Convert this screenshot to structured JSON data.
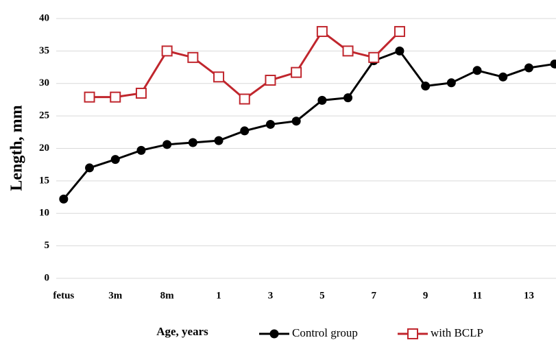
{
  "chart_data": {
    "type": "line",
    "ylabel": "Length, mm",
    "xlabel": "Age, years",
    "categories": [
      "fetus",
      null,
      "3m",
      null,
      "8m",
      null,
      "1",
      null,
      "3",
      null,
      "5",
      null,
      "7",
      null,
      "9",
      null,
      "11",
      null,
      "13",
      null
    ],
    "series": [
      {
        "name": "Control group",
        "color": "#000000",
        "marker": "circle",
        "values": [
          12.2,
          17,
          18.3,
          19.7,
          20.6,
          20.9,
          21.2,
          22.7,
          23.7,
          24.2,
          27.4,
          27.8,
          33.5,
          35,
          29.6,
          30.1,
          32,
          31,
          32.4,
          33
        ]
      },
      {
        "name": "with BCLP",
        "color": "#c0262d",
        "marker": "square",
        "values": [
          null,
          27.9,
          27.9,
          28.5,
          35,
          34,
          31,
          27.6,
          30.5,
          31.7,
          38,
          35,
          34,
          38,
          null,
          null,
          null,
          null,
          null,
          null
        ]
      }
    ],
    "ylim": [
      0,
      40
    ],
    "yticks": [
      0,
      5,
      10,
      15,
      20,
      25,
      30,
      35,
      40
    ],
    "grid": true
  }
}
